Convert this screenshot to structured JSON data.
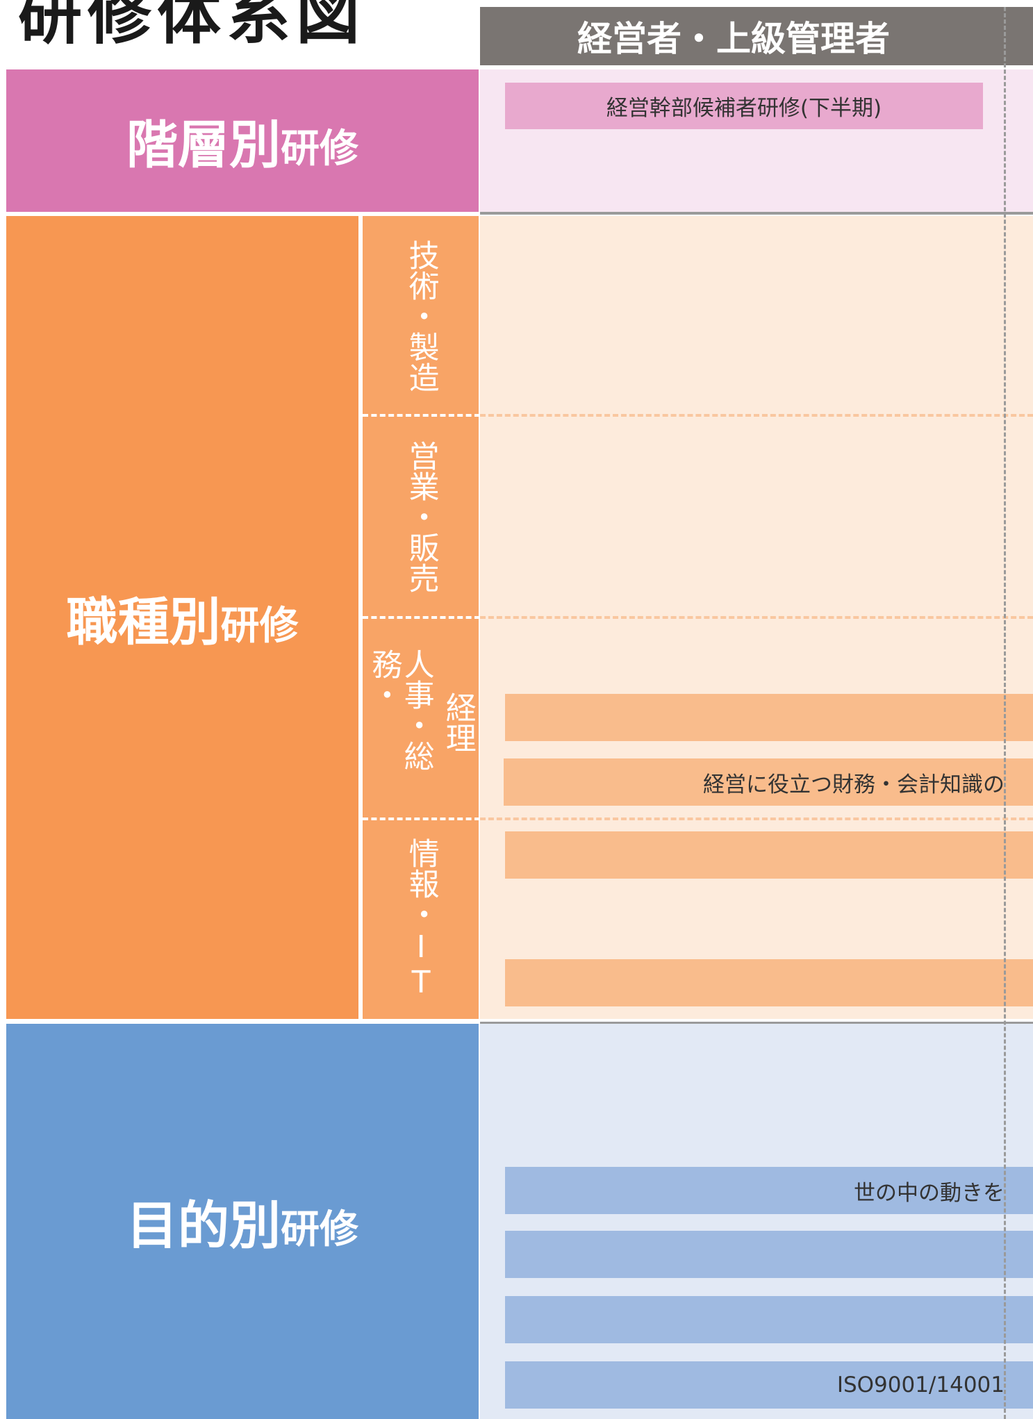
{
  "title": "研修体系図",
  "column_header": "経営者・上級管理者",
  "rows": [
    {
      "label": "階層別",
      "suffix": "研修",
      "bars": [
        "経営幹部候補者研修(下半期)"
      ]
    },
    {
      "label": "職種別",
      "suffix": "研修",
      "subcategories": [
        {
          "lines": [
            "技術・製造"
          ]
        },
        {
          "lines": [
            "営業・販売"
          ]
        },
        {
          "lines": [
            "人事・総務・",
            "経理"
          ]
        },
        {
          "lines": [
            "情報・IT"
          ]
        }
      ],
      "bars": [
        "経営に役立つ財務・会計知識の"
      ]
    },
    {
      "label": "目的別",
      "suffix": "研修",
      "bars": [
        "世の中の動きを",
        "ISO9001/14001"
      ]
    }
  ]
}
